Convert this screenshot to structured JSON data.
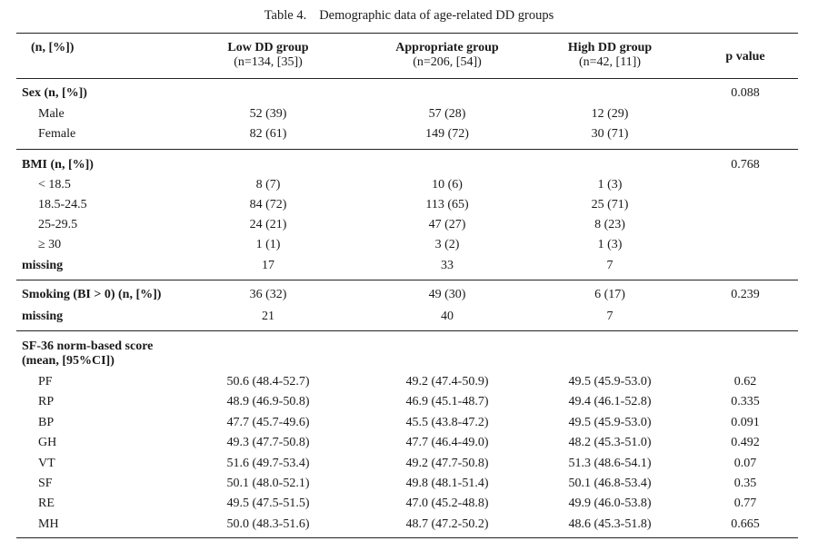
{
  "caption": {
    "number": "Table 4.",
    "title": "Demographic data of age-related DD groups"
  },
  "header": {
    "col0": "(n, [%])",
    "groups": [
      {
        "name": "Low DD group",
        "n": "(n=134, [35])"
      },
      {
        "name": "Appropriate group",
        "n": "(n=206, [54])"
      },
      {
        "name": "High DD group",
        "n": "(n=42, [11])"
      }
    ],
    "pvalue": "p value"
  },
  "sex": {
    "title": "Sex (n, [%])",
    "p": "0.088",
    "rows": [
      {
        "label": "Male",
        "v": [
          "52 (39)",
          "57 (28)",
          "12 (29)"
        ]
      },
      {
        "label": "Female",
        "v": [
          "82 (61)",
          "149 (72)",
          "30 (71)"
        ]
      }
    ]
  },
  "bmi": {
    "title": "BMI (n, [%])",
    "p": "0.768",
    "rows": [
      {
        "label": "< 18.5",
        "v": [
          "8 (7)",
          "10 (6)",
          "1 (3)"
        ]
      },
      {
        "label": "18.5-24.5",
        "v": [
          "84 (72)",
          "113 (65)",
          "25 (71)"
        ]
      },
      {
        "label": "25-29.5",
        "v": [
          "24 (21)",
          "47 (27)",
          "8 (23)"
        ]
      },
      {
        "label": "≥ 30",
        "v": [
          "1 (1)",
          "3 (2)",
          "1 (3)"
        ]
      }
    ],
    "missing": {
      "label": "missing",
      "v": [
        "17",
        "33",
        "7"
      ]
    }
  },
  "smoking": {
    "title": "Smoking (BI > 0) (n, [%])",
    "v": [
      "36 (32)",
      "49 (30)",
      "6 (17)"
    ],
    "p": "0.239",
    "missing": {
      "label": "missing",
      "v": [
        "21",
        "40",
        "7"
      ]
    }
  },
  "sf36": {
    "title1": "SF-36 norm-based score",
    "title2": "(mean, [95%CI])",
    "rows": [
      {
        "label": "PF",
        "v": [
          "50.6 (48.4-52.7)",
          "49.2 (47.4-50.9)",
          "49.5 (45.9-53.0)"
        ],
        "p": "0.62"
      },
      {
        "label": "RP",
        "v": [
          "48.9 (46.9-50.8)",
          "46.9 (45.1-48.7)",
          "49.4 (46.1-52.8)"
        ],
        "p": "0.335"
      },
      {
        "label": "BP",
        "v": [
          "47.7 (45.7-49.6)",
          "45.5 (43.8-47.2)",
          "49.5 (45.9-53.0)"
        ],
        "p": "0.091"
      },
      {
        "label": "GH",
        "v": [
          "49.3 (47.7-50.8)",
          "47.7 (46.4-49.0)",
          "48.2 (45.3-51.0)"
        ],
        "p": "0.492"
      },
      {
        "label": "VT",
        "v": [
          "51.6 (49.7-53.4)",
          "49.2 (47.7-50.8)",
          "51.3 (48.6-54.1)"
        ],
        "p": "0.07"
      },
      {
        "label": "SF",
        "v": [
          "50.1 (48.0-52.1)",
          "49.8 (48.1-51.4)",
          "50.1 (46.8-53.4)"
        ],
        "p": "0.35"
      },
      {
        "label": "RE",
        "v": [
          "49.5 (47.5-51.5)",
          "47.0 (45.2-48.8)",
          "49.9 (46.0-53.8)"
        ],
        "p": "0.77"
      },
      {
        "label": "MH",
        "v": [
          "50.0 (48.3-51.6)",
          "48.7 (47.2-50.2)",
          "48.6 (45.3-51.8)"
        ],
        "p": "0.665"
      }
    ]
  }
}
